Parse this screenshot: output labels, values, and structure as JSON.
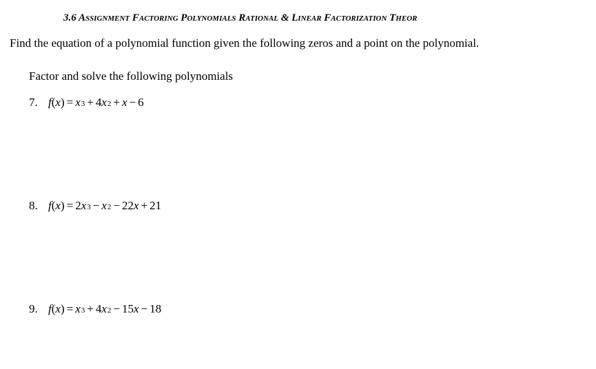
{
  "header": {
    "title": "3.6 Assignment Factoring Polynomials Rational & Linear Factorization Theor"
  },
  "instruction": "Find the equation of a polynomial function given the following zeros and a point on the polynomial.",
  "sub_instruction": "Factor and solve the following polynomials",
  "problems": [
    {
      "number": "7.",
      "fn_label": "f",
      "var": "x",
      "terms": {
        "c1": "",
        "v1": "x",
        "e1": "3",
        "op1": "+",
        "c2": "4",
        "v2": "x",
        "e2": "2",
        "op2": "+",
        "c3": "",
        "v3": "x",
        "e3": "",
        "op3": "−",
        "c4": "6"
      }
    },
    {
      "number": "8.",
      "fn_label": "f",
      "var": "x",
      "terms": {
        "c1": "2",
        "v1": "x",
        "e1": "3",
        "op1": "−",
        "c2": "",
        "v2": "x",
        "e2": "2",
        "op2": "−",
        "c3": "22",
        "v3": "x",
        "e3": "",
        "op3": "+",
        "c4": "21"
      }
    },
    {
      "number": "9.",
      "fn_label": "f",
      "var": "x",
      "terms": {
        "c1": "",
        "v1": "x",
        "e1": "3",
        "op1": "+",
        "c2": "4",
        "v2": "x",
        "e2": "2",
        "op2": "−",
        "c3": "15",
        "v3": "x",
        "e3": "",
        "op3": "−",
        "c4": "18"
      }
    }
  ]
}
